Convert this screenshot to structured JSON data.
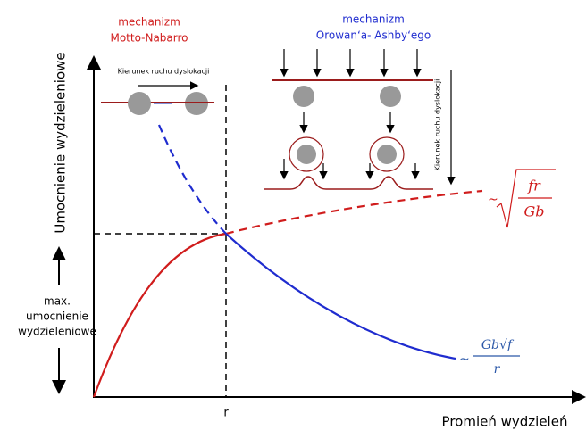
{
  "left_mechanism": {
    "line1": "mechanizm",
    "line2": "Motto-Nabarro",
    "arrow_label": "Kierunek ruchu dyslokacji"
  },
  "right_mechanism": {
    "line1": "mechanizm",
    "line2": "Orowan‘a- Ashby‘ego",
    "arrow_label": "Kierunek ruchu dyslokacji"
  },
  "y_axis_label": "Umocnienie wydzieleniowe",
  "x_axis_label": "Promień wydzieleń",
  "x_marker": "r",
  "max_label": [
    "max.",
    "umocnienie",
    "wydzieleniowe"
  ],
  "formula_red": {
    "prefix": "~",
    "numerator": "fr",
    "denominator": "Gb"
  },
  "formula_blue": {
    "prefix": "~",
    "numerator": "Gb√f",
    "denominator": "r"
  }
}
